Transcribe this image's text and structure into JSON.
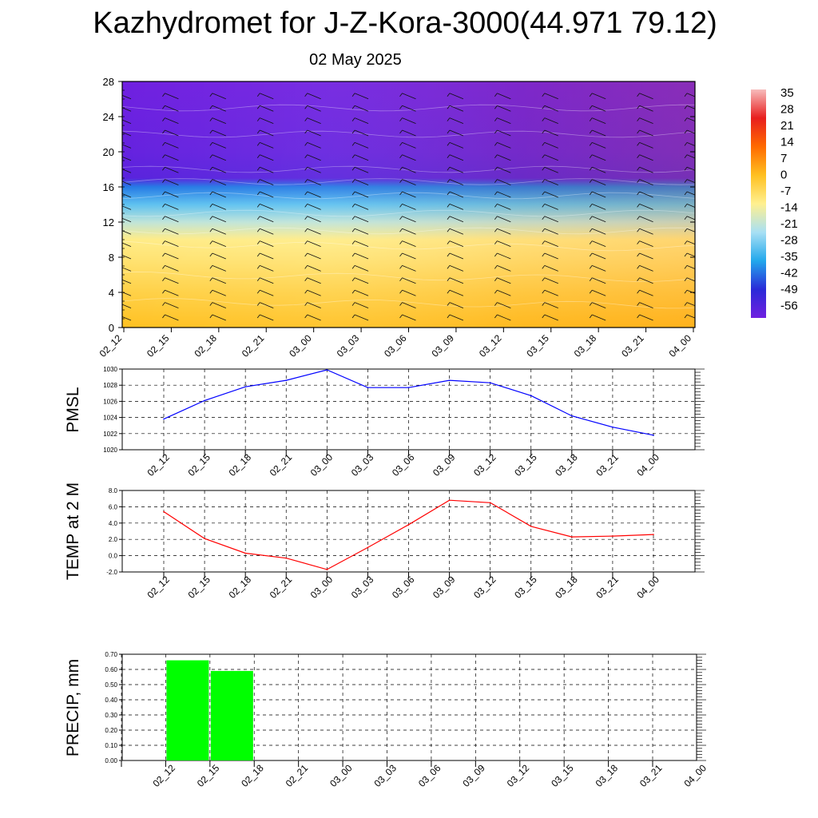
{
  "title": "Kazhydromet for J-Z-Kora-3000(44.971 79.12)",
  "subtitle": "02 May 2025",
  "chart_data": [
    {
      "type": "heatmap",
      "x_labels": [
        "02_12",
        "02_15",
        "02_18",
        "02_21",
        "03_00",
        "03_03",
        "03_06",
        "03_09",
        "03_12",
        "03_15",
        "03_18",
        "03_21",
        "04_00"
      ],
      "y_ticks": [
        "0",
        "4",
        "8",
        "12",
        "16",
        "20",
        "24",
        "28"
      ],
      "ylim": [
        0,
        28
      ],
      "colorbar": {
        "labels": [
          "35",
          "28",
          "21",
          "14",
          "7",
          "0",
          "-7",
          "-14",
          "-21",
          "-28",
          "-35",
          "-42",
          "-49",
          "-56"
        ],
        "range": [
          -60,
          38
        ],
        "colors": [
          "#f7bcbc",
          "#e81e1e",
          "#ff6a00",
          "#ffc020",
          "#fff090",
          "#a8e0f4",
          "#22a8ec",
          "#2a2ad8",
          "#7020e0"
        ]
      },
      "profile_description_levels": [
        0,
        4,
        8,
        10,
        12,
        14,
        16,
        17,
        20,
        28
      ],
      "profile_temperature": [
        1,
        -3,
        -8,
        -10,
        -20,
        -30,
        -40,
        -56,
        -58,
        -60
      ]
    },
    {
      "type": "line",
      "ylabel": "PMSL",
      "x_labels": [
        "02_12",
        "02_15",
        "02_18",
        "02_21",
        "03_00",
        "03_03",
        "03_06",
        "03_09",
        "03_12",
        "03_15",
        "03_18",
        "03_21",
        "04_00"
      ],
      "y_ticks": [
        "1020",
        "1022",
        "1024",
        "1026",
        "1028",
        "1030"
      ],
      "ylim": [
        1020,
        1030
      ],
      "color": "#0000ff",
      "values": [
        1023.8,
        1026.1,
        1027.8,
        1028.6,
        1029.9,
        1027.7,
        1027.7,
        1028.6,
        1028.3,
        1026.7,
        1024.2,
        1022.8,
        1021.8
      ]
    },
    {
      "type": "line",
      "ylabel": "TEMP at 2 M",
      "x_labels": [
        "02_12",
        "02_15",
        "02_18",
        "02_21",
        "03_00",
        "03_03",
        "03_06",
        "03_09",
        "03_12",
        "03_15",
        "03_18",
        "03_21",
        "04_00"
      ],
      "y_ticks": [
        "-2.0",
        "0.0",
        "2.0",
        "4.0",
        "6.0",
        "8.0"
      ],
      "ylim": [
        -2,
        8
      ],
      "color": "#ff0000",
      "values": [
        5.4,
        2.1,
        0.3,
        -0.3,
        -1.7,
        1.0,
        3.8,
        6.8,
        6.5,
        3.6,
        2.3,
        2.4,
        2.6
      ]
    },
    {
      "type": "bar",
      "ylabel": "PRECIP, mm",
      "x_labels": [
        "02_12",
        "02_15",
        "02_18",
        "02_21",
        "03_00",
        "03_03",
        "03_06",
        "03_09",
        "03_12",
        "03_15",
        "03_18",
        "03_21",
        "04_00"
      ],
      "y_ticks": [
        "0.00",
        "0.10",
        "0.20",
        "0.30",
        "0.40",
        "0.50",
        "0.60",
        "0.70"
      ],
      "ylim": [
        0,
        0.7
      ],
      "color": "#00ff00",
      "values": [
        0,
        0.66,
        0.59,
        0,
        0,
        0,
        0,
        0,
        0,
        0,
        0,
        0,
        0
      ]
    }
  ]
}
